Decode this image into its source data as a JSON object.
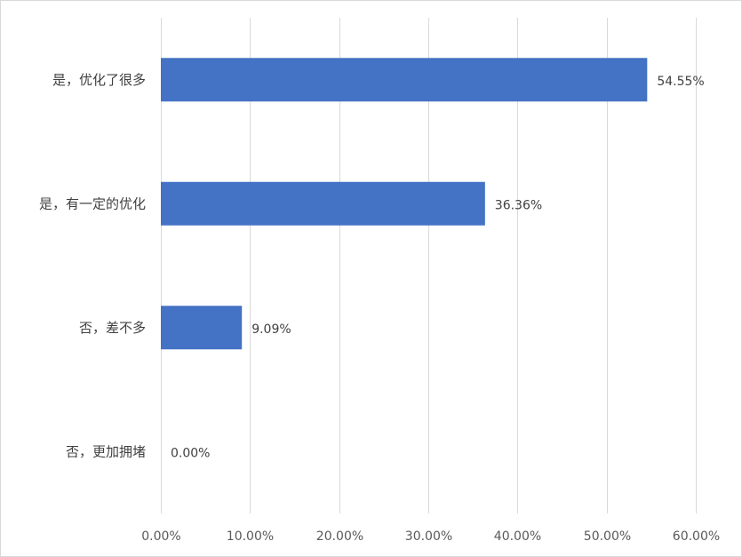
{
  "chart_data": {
    "type": "bar",
    "orientation": "horizontal",
    "categories": [
      "是，优化了很多",
      "是，有一定的优化",
      "否，差不多",
      "否，更加拥堵"
    ],
    "values": [
      54.55,
      36.36,
      9.09,
      0.0
    ],
    "data_labels": [
      "54.55%",
      "36.36%",
      "9.09%",
      "0.00%"
    ],
    "xlim": [
      0,
      60
    ],
    "xticks": [
      0,
      10,
      20,
      30,
      40,
      50,
      60
    ],
    "xtick_labels": [
      "0.00%",
      "10.00%",
      "20.00%",
      "30.00%",
      "40.00%",
      "50.00%",
      "60.00%"
    ],
    "title": "",
    "xlabel": "",
    "ylabel": "",
    "grid": "vertical",
    "bar_color": "#4472C4",
    "grid_color": "#D9D9D9",
    "border_color": "#D9D9D9"
  }
}
